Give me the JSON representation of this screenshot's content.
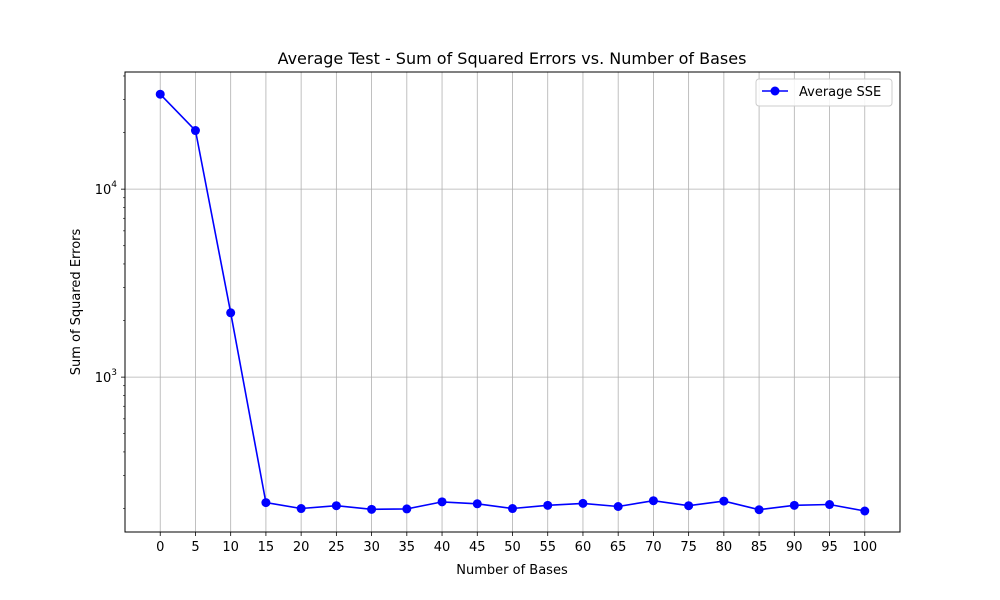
{
  "chart_data": {
    "type": "line",
    "title": "Average Test - Sum of Squared Errors vs. Number of Bases",
    "xlabel": "Number of Bases",
    "ylabel": "Sum of Squared Errors",
    "yscale": "log",
    "xlim": [
      -5,
      105
    ],
    "ylim": [
      150,
      42000
    ],
    "grid": true,
    "legend": "top-right",
    "x_ticks": [
      0,
      5,
      10,
      15,
      20,
      25,
      30,
      35,
      40,
      45,
      50,
      55,
      60,
      65,
      70,
      75,
      80,
      85,
      90,
      95,
      100
    ],
    "y_major_ticks": [
      {
        "value": 1000,
        "base": "10",
        "exp": "3"
      },
      {
        "value": 10000,
        "base": "10",
        "exp": "4"
      }
    ],
    "x": [
      0,
      5,
      10,
      15,
      20,
      25,
      30,
      35,
      40,
      45,
      50,
      55,
      60,
      65,
      70,
      75,
      80,
      85,
      90,
      95,
      100
    ],
    "series": [
      {
        "name": "Average SSE",
        "color": "#0000ff",
        "marker": "circle",
        "values": [
          32000,
          20500,
          2200,
          215,
          200,
          207,
          198,
          199,
          217,
          212,
          200,
          208,
          213,
          205,
          220,
          207,
          219,
          197,
          208,
          210,
          194
        ]
      }
    ]
  }
}
